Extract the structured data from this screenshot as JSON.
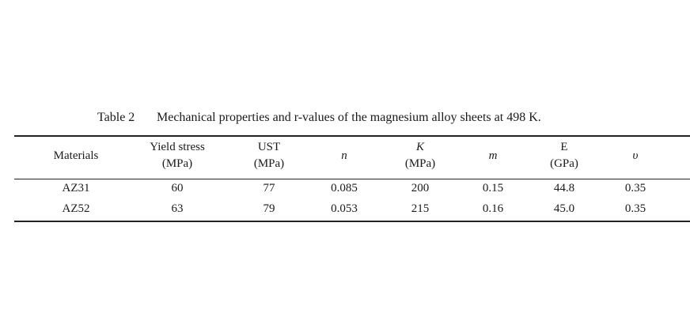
{
  "caption": {
    "label": "Table 2",
    "text": "Mechanical properties and r-values of the magnesium alloy sheets at 498 K."
  },
  "table": {
    "header": [
      [
        "Materials"
      ],
      [
        "Yield stress",
        "(MPa)"
      ],
      [
        "UST",
        "(MPa)"
      ],
      [
        "n"
      ],
      [
        "K",
        "(MPa)"
      ],
      [
        "m"
      ],
      [
        "E",
        "(GPa)"
      ],
      [
        "υ"
      ]
    ],
    "rows": [
      [
        "AZ31",
        "60",
        "77",
        "0.085",
        "200",
        "0.15",
        "44.8",
        "0.35"
      ],
      [
        "AZ52",
        "63",
        "79",
        "0.053",
        "215",
        "0.16",
        "45.0",
        "0.35"
      ]
    ]
  }
}
